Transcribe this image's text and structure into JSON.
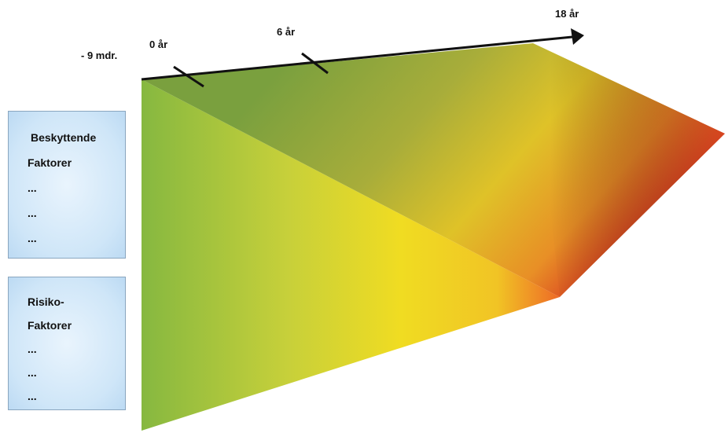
{
  "timeline": {
    "start_label": "- 9 mdr.",
    "ticks": [
      "0 år",
      "6 år",
      "18 år"
    ]
  },
  "protective_box": {
    "lines": [
      "Beskyttende",
      "Faktorer",
      "...",
      "...",
      "..."
    ]
  },
  "risk_box": {
    "lines": [
      "Risiko-",
      "Faktorer",
      "...",
      "...",
      "..."
    ]
  },
  "colors": {
    "green": "#86b840",
    "dark_green": "#7aa03e",
    "yellow": "#f2dc1e",
    "orange": "#ee7a26",
    "red": "#d62e22",
    "box_fill": "#d5e9f9",
    "box_border": "#8aa6bf"
  }
}
